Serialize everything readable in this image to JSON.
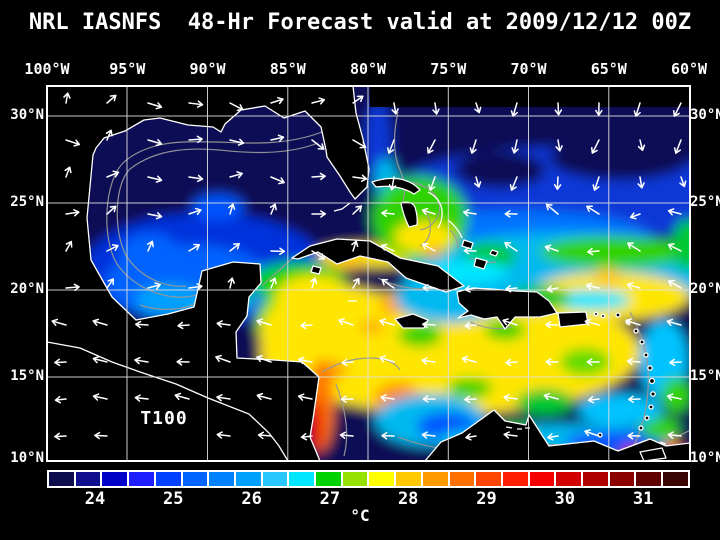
{
  "title": "NRL IASNFS  48-Hr Forecast valid at 2009/12/12 00Z",
  "map": {
    "overlay_label": "T100",
    "lon_labels": [
      "100°W",
      "95°W",
      "90°W",
      "85°W",
      "80°W",
      "75°W",
      "70°W",
      "65°W",
      "60°W"
    ],
    "lat_labels": [
      "30°N",
      "25°N",
      "20°N",
      "15°N",
      "10°N"
    ]
  },
  "colorbar": {
    "unit": "°C",
    "tick_labels": [
      "24",
      "25",
      "26",
      "27",
      "28",
      "29",
      "30",
      "31"
    ],
    "cell_colors": [
      "#0d0d4d",
      "#10108e",
      "#0000c8",
      "#1e1eff",
      "#0041ff",
      "#0064ff",
      "#0082ff",
      "#00a0ff",
      "#28c8ff",
      "#00e6ff",
      "#00d200",
      "#96e100",
      "#ffff00",
      "#ffc800",
      "#ff9b00",
      "#ff7000",
      "#ff4600",
      "#ff1e00",
      "#f50000",
      "#d20000",
      "#b00000",
      "#8c0000",
      "#600000",
      "#3c0505"
    ]
  },
  "chart_data": {
    "type": "heatmap",
    "title": "NRL IASNFS 48-Hr Forecast valid at 2009/12/12 00Z",
    "overlay_label": "T100",
    "colorbar_unit": "°C",
    "colorbar_ticks": [
      24,
      25,
      26,
      27,
      28,
      29,
      30,
      31
    ],
    "x_ticks": [
      "100°W",
      "95°W",
      "90°W",
      "85°W",
      "80°W",
      "75°W",
      "70°W",
      "65°W",
      "60°W"
    ],
    "y_ticks": [
      "30°N",
      "25°N",
      "20°N",
      "15°N",
      "10°N"
    ],
    "legend_position": "bottom"
  }
}
